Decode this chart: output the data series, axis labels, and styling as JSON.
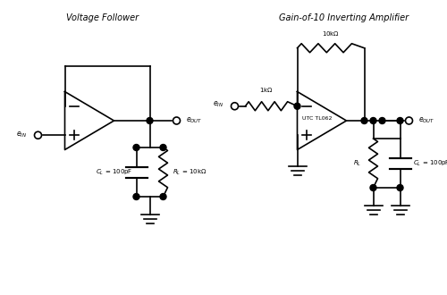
{
  "title_left": "Voltage Follower",
  "title_right": "Gain-of-10 Inverting Amplifier",
  "background_color": "#ffffff",
  "line_color": "#000000",
  "text_color": "#000000",
  "line_width": 1.2,
  "font_size": 7
}
